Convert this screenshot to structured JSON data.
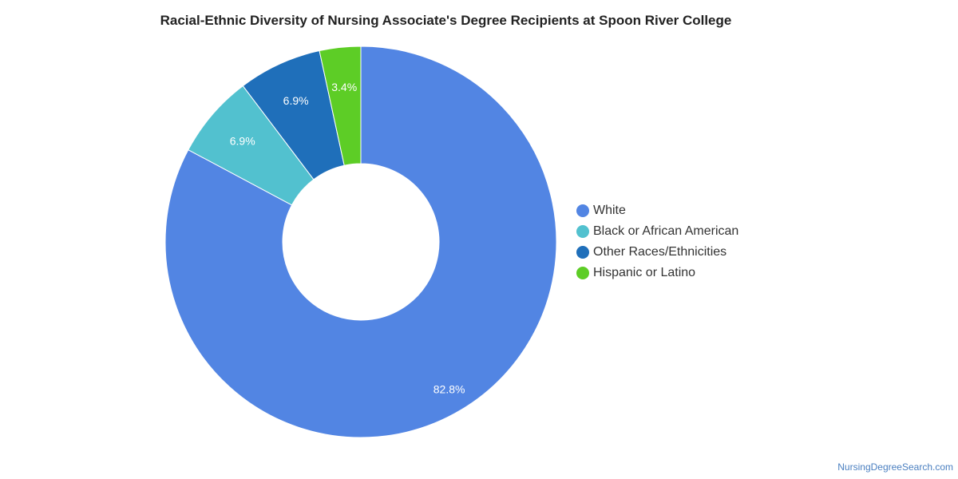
{
  "chart_data": {
    "type": "pie",
    "subtype": "donut",
    "title": "Racial-Ethnic Diversity of Nursing Associate's Degree Recipients at Spoon River College",
    "categories": [
      "White",
      "Black or African American",
      "Other Races/Ethnicities",
      "Hispanic or Latino"
    ],
    "values": [
      82.8,
      6.9,
      6.9,
      3.4
    ],
    "data_labels": [
      "82.8%",
      "6.9%",
      "6.9%",
      "3.4%"
    ],
    "colors": [
      "#5285e3",
      "#52c1cf",
      "#1f6fba",
      "#5dcd26"
    ],
    "legend_position": "right"
  },
  "footer": {
    "credit": "NursingDegreeSearch.com"
  }
}
